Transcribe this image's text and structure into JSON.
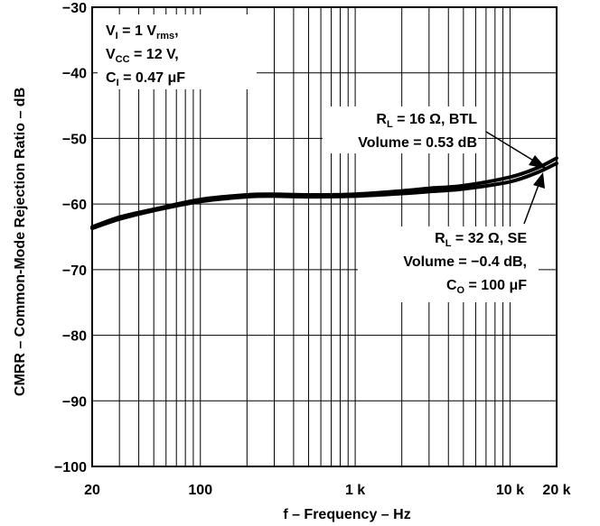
{
  "chart_data": {
    "type": "line",
    "xscale": "log",
    "xlim": [
      20,
      20000
    ],
    "ylim": [
      -100,
      -30
    ],
    "grid": true,
    "xlabel": "f – Frequency – Hz",
    "ylabel": "CMRR – Common-Mode Rejection Ratio – dB",
    "x_ticks": [
      20,
      100,
      1000,
      10000,
      20000
    ],
    "x_tick_labels": [
      "20",
      "100",
      "1 k",
      "10 k",
      "20 k"
    ],
    "y_ticks": [
      -30,
      -40,
      -50,
      -60,
      -70,
      -80,
      -90,
      -100
    ],
    "y_tick_labels": [
      "−30",
      "−40",
      "−50",
      "−60",
      "−70",
      "−80",
      "−90",
      "−100"
    ],
    "series": [
      {
        "x": [
          20,
          30,
          50,
          100,
          200,
          300,
          500,
          1000,
          2000,
          3000,
          5000,
          10000,
          15000,
          20000
        ],
        "y": [
          -63.5,
          -62.0,
          -60.8,
          -59.3,
          -58.6,
          -58.5,
          -58.6,
          -58.5,
          -58.0,
          -57.6,
          -57.2,
          -55.9,
          -54.5,
          -53.0
        ]
      },
      {
        "x": [
          20,
          30,
          50,
          100,
          200,
          300,
          500,
          1000,
          2000,
          3000,
          5000,
          10000,
          15000,
          20000
        ],
        "y": [
          -63.7,
          -62.3,
          -61.0,
          -59.6,
          -58.9,
          -58.8,
          -58.9,
          -58.8,
          -58.4,
          -58.1,
          -57.7,
          -56.6,
          -55.2,
          -53.8
        ]
      }
    ],
    "conditions": {
      "line1_main": "V",
      "line1_sub": "I",
      "line1_rest": " = 1 V",
      "line1_sub2": "rms",
      "line1_end": ",",
      "line2_main": "V",
      "line2_sub": "CC",
      "line2_rest": " = 12 V,",
      "line3_main": "C",
      "line3_sub": "I",
      "line3_rest": " = 0.47 μF"
    },
    "annotation_btl": {
      "line1_main": "R",
      "line1_sub": "L",
      "line1_rest": " = 16 Ω, BTL",
      "line2": "Volume = 0.53 dB"
    },
    "annotation_se": {
      "line1_main": "R",
      "line1_sub": "L",
      "line1_rest": " = 32 Ω, SE",
      "line2": "Volume = −0.4 dB,",
      "line3_main": "C",
      "line3_sub": "O",
      "line3_rest": " = 100 μF"
    }
  }
}
